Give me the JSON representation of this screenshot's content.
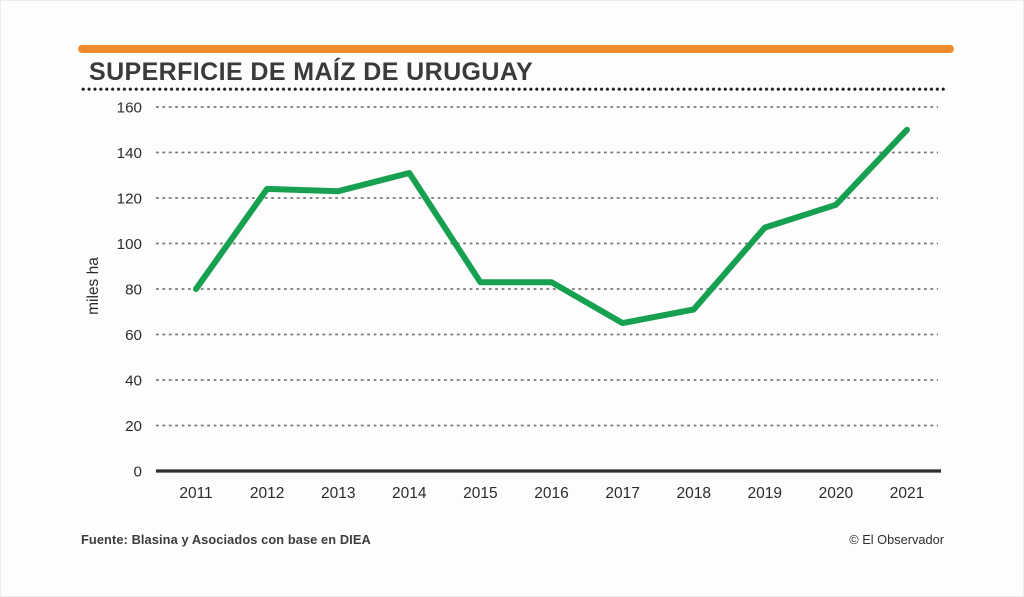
{
  "header": {
    "title": "SUPERFICIE DE MAÍZ DE URUGUAY"
  },
  "footer": {
    "source": "Fuente: Blasina y Asociados con base en DIEA",
    "credit": "© El Observador"
  },
  "colors": {
    "accent_orange": "#ED8B2D",
    "line_green": "#17A050",
    "gridline_gray": "#7a7a7a",
    "axis_dark": "#2e2e2e",
    "text_dark": "#2b2b2b"
  },
  "chart_data": {
    "type": "line",
    "title": "SUPERFICIE DE MAÍZ DE URUGUAY",
    "ylabel": "miles ha",
    "xlabel": "",
    "categories": [
      "2011",
      "2012",
      "2013",
      "2014",
      "2015",
      "2016",
      "2017",
      "2018",
      "2019",
      "2020",
      "2021"
    ],
    "series": [
      {
        "name": "Superficie de maíz",
        "values": [
          80,
          124,
          123,
          131,
          83,
          83,
          65,
          71,
          107,
          117,
          150
        ]
      }
    ],
    "ylim": [
      0,
      160
    ],
    "ytick_step": 20,
    "grid": "dashed-horizontal",
    "legend": "none"
  }
}
